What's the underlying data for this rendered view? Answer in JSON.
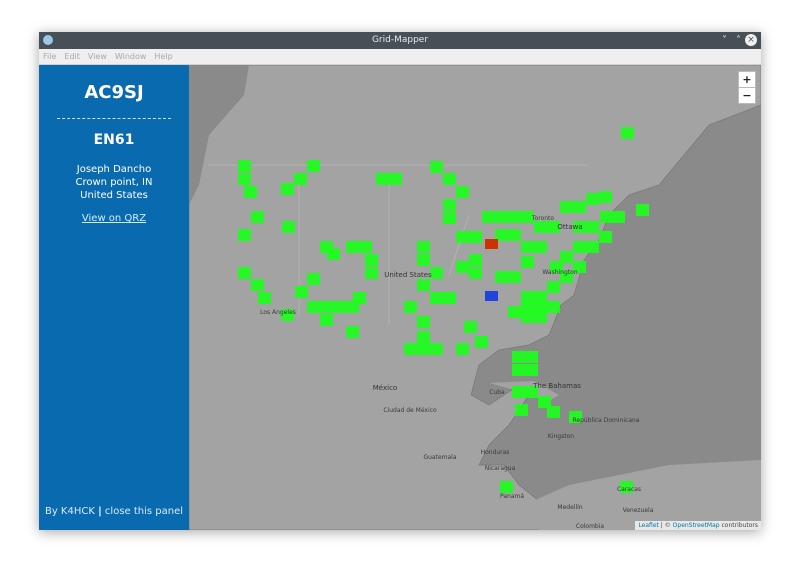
{
  "window": {
    "title": "Grid-Mapper"
  },
  "menu": [
    "File",
    "Edit",
    "View",
    "Window",
    "Help"
  ],
  "sidebar": {
    "callsign": "AC9SJ",
    "grid": "EN61",
    "name": "Joseph Dancho",
    "location": "Crown point, IN",
    "country": "United States",
    "qrz_link": "View on QRZ",
    "footer": {
      "author": "By K4HCK",
      "separator": "|",
      "close": "close this panel"
    }
  },
  "map": {
    "zoom_in": "+",
    "zoom_out": "−",
    "attribution": {
      "leaflet": "Leaflet",
      "separator": "| ©",
      "osm": "OpenStreetMap",
      "suffix": "contributors"
    },
    "labels": [
      "Ottawa",
      "Toronto",
      "United States",
      "Washington",
      "Los Angeles",
      "México",
      "Ciudad de México",
      "The Bahamas",
      "Cuba",
      "Kingston",
      "República Dominicana",
      "Guatemala",
      "Honduras",
      "Nicaragua",
      "Panamá",
      "Medellín",
      "Caracas",
      "Venezuela",
      "Colombia"
    ]
  }
}
